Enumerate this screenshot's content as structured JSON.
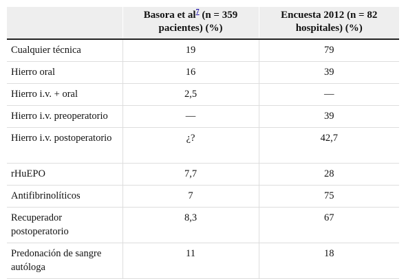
{
  "table": {
    "headers": {
      "col1": "",
      "col2_pre": "Basora et al",
      "col2_ref": "7",
      "col2_post": " (n = 359 pacientes) (%)",
      "col3": "Encuesta 2012 (n = 82 hospitales) (%)"
    },
    "rows": [
      {
        "label": "Cualquier técnica",
        "basora": "19",
        "encuesta": "79"
      },
      {
        "label": "Hierro oral",
        "basora": "16",
        "encuesta": "39"
      },
      {
        "label": "Hierro i.v. + oral",
        "basora": "2,5",
        "encuesta": "—"
      },
      {
        "label": "Hierro i.v. preoperatorio",
        "basora": "—",
        "encuesta": "39"
      },
      {
        "label": "Hierro i.v. postoperatorio",
        "basora": "¿?",
        "encuesta": "42,7"
      },
      {
        "label": "rHuEPO",
        "basora": "7,7",
        "encuesta": "28"
      },
      {
        "label": "Antifibrinolíticos",
        "basora": "7",
        "encuesta": "75"
      },
      {
        "label": "Recuperador postoperatorio",
        "basora": "8,3",
        "encuesta": "67"
      },
      {
        "label": "Predonación de sangre autóloga",
        "basora": "11",
        "encuesta": "18"
      }
    ]
  }
}
